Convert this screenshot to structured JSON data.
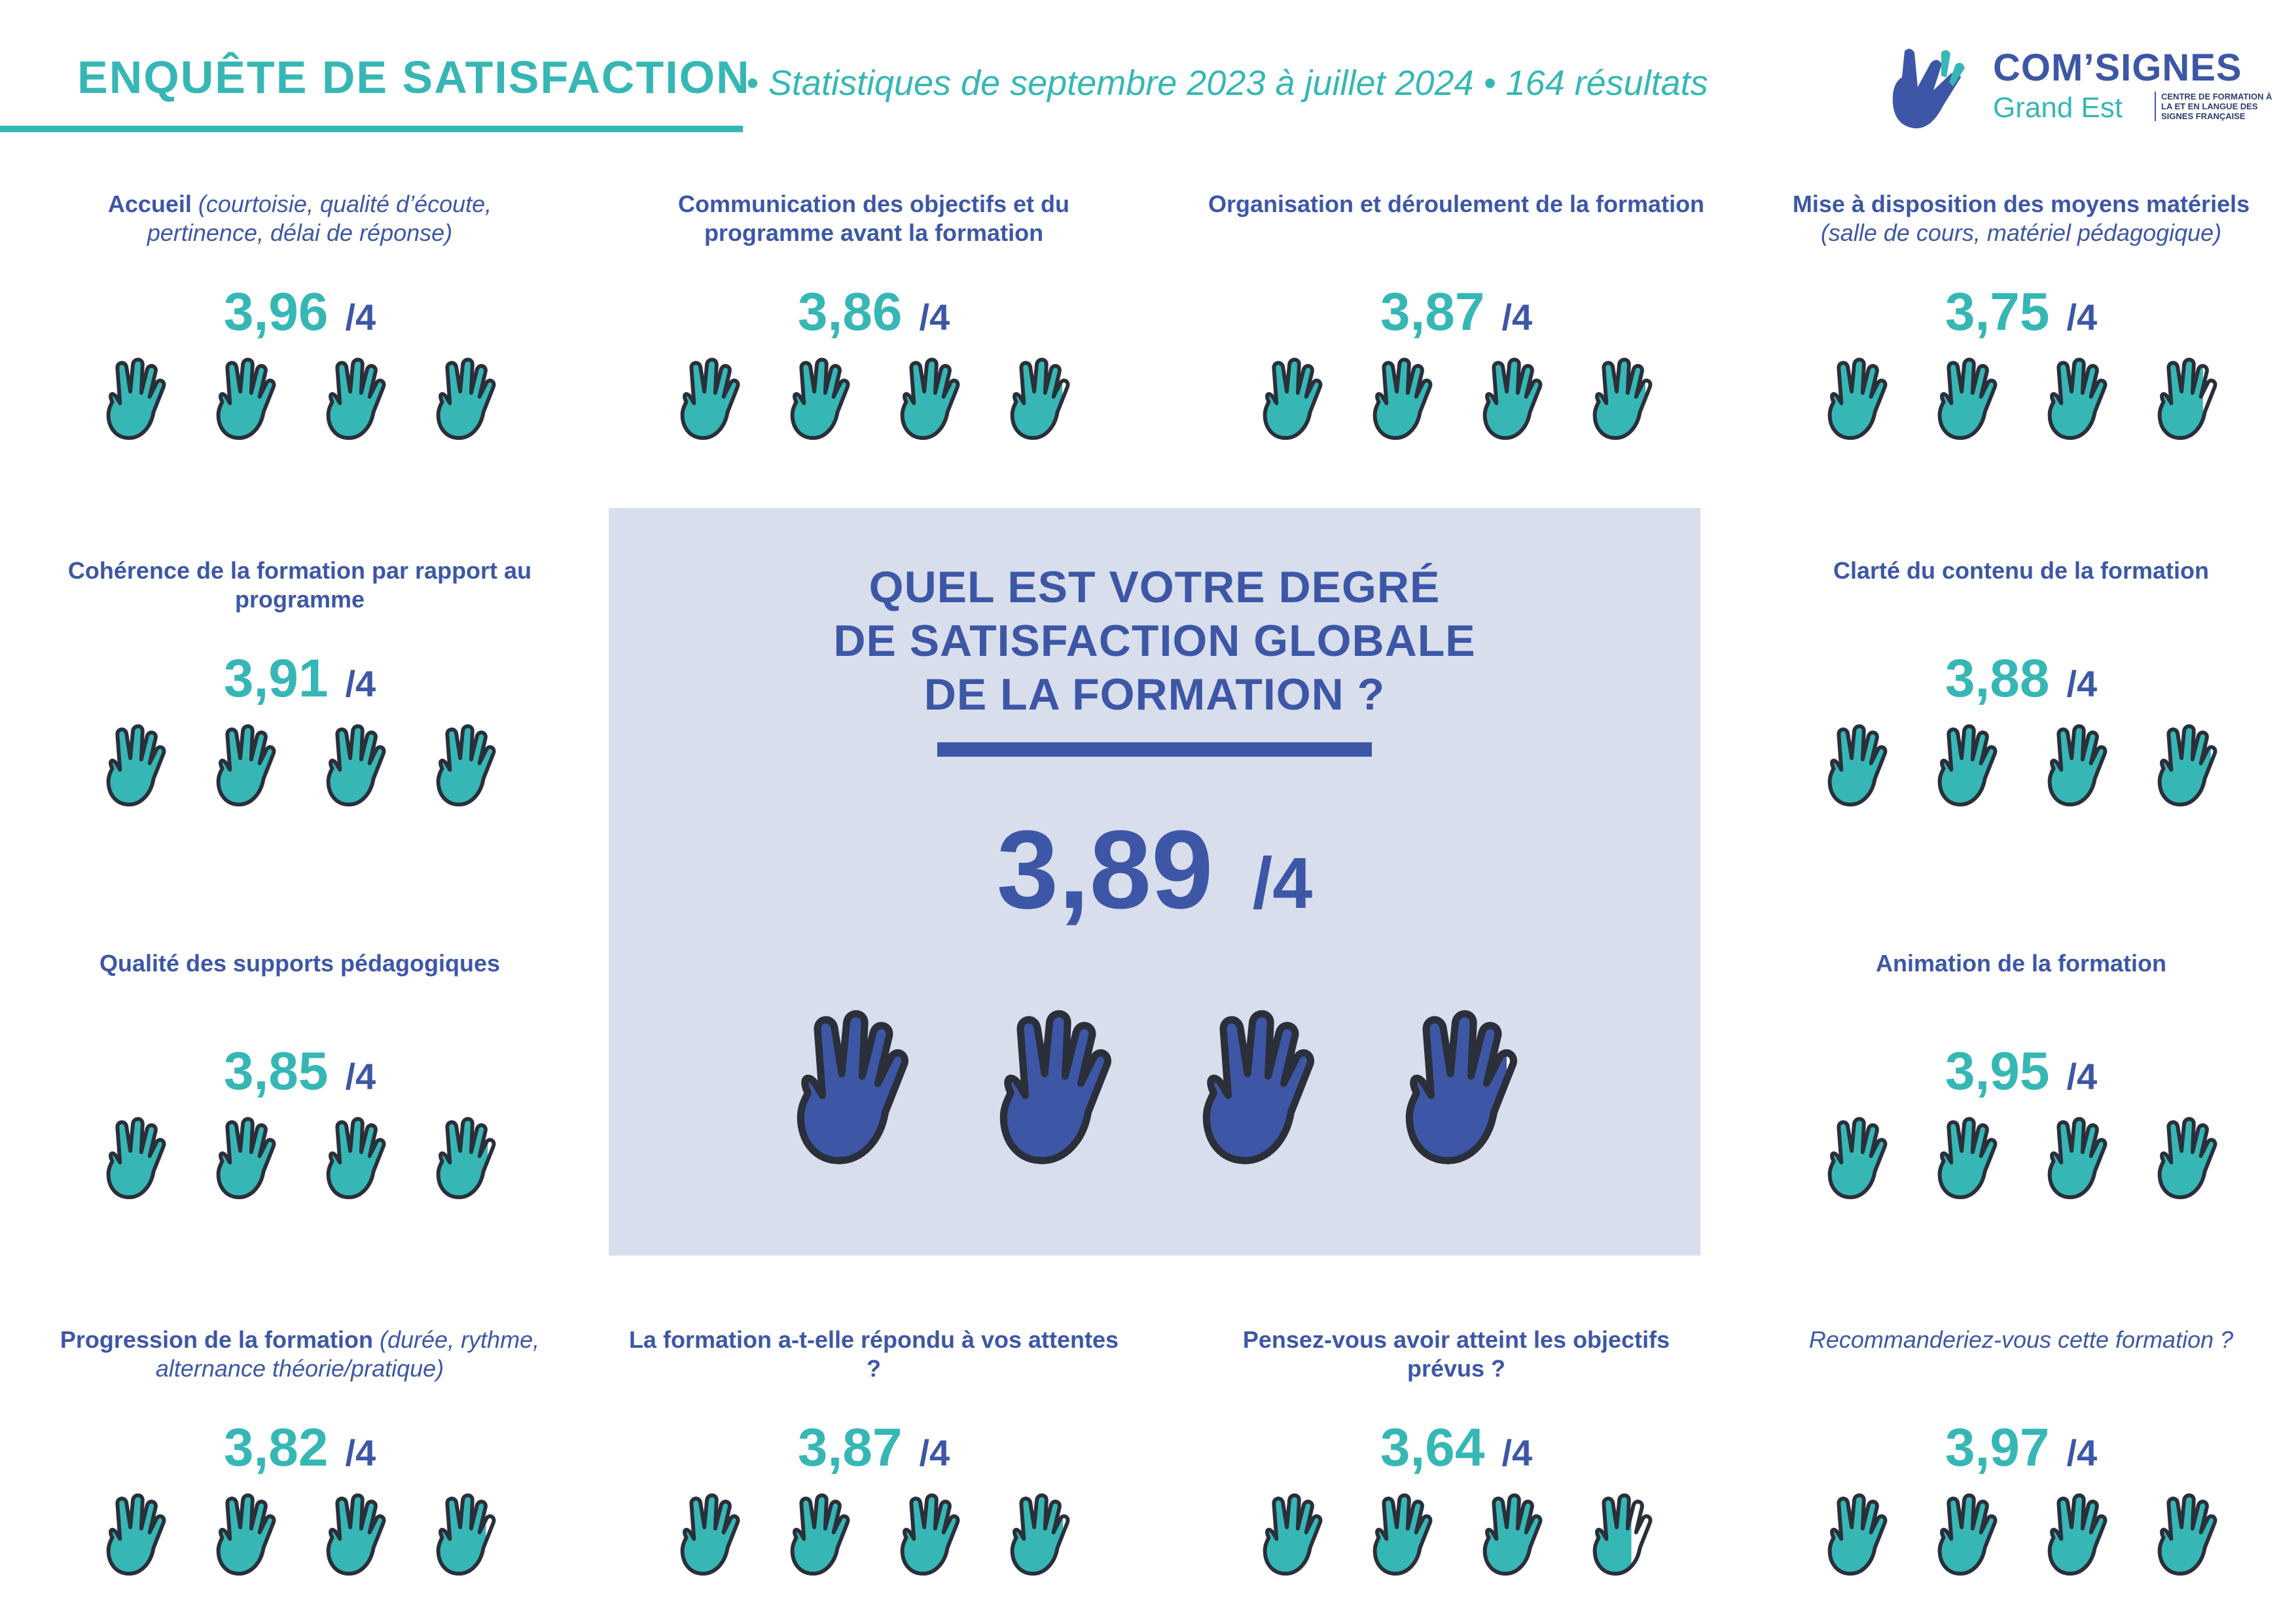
{
  "header": {
    "title": "ENQUÊTE DE SATISFACTION",
    "subtitle": "• Statistiques de septembre 2023 à juillet 2024 • 164 résultats"
  },
  "logo": {
    "name": "COM’SIGNES",
    "region": "Grand Est",
    "tagline": "CENTRE DE FORMATION À LA ET EN LANGUE DES SIGNES FRANÇAISE",
    "icon": "hand-logo-icon"
  },
  "colors": {
    "teal": "#36b7b5",
    "navy": "#3d57a6",
    "panel": "#d9deec",
    "outline": "#2b2f3a"
  },
  "rating_max": 4,
  "denominator": "/4",
  "overall": {
    "question": "QUEL EST VOTRE DEGRÉ DE SATISFACTION GLOBALE DE LA FORMATION ?",
    "question_lines": [
      "QUEL EST VOTRE DEGRÉ",
      "DE SATISFACTION GLOBALE",
      "DE LA FORMATION ?"
    ],
    "score": "3,89",
    "value": 3.89
  },
  "cards": [
    {
      "title": "Accueil",
      "note": " (courtoisie, qualité d’écoute, pertinence, délai de réponse)",
      "score": "3,96",
      "value": 3.96
    },
    {
      "title": "Communication des objectifs et du programme avant la formation",
      "note": "",
      "score": "3,86",
      "value": 3.86
    },
    {
      "title": "Organisation et déroulement de la formation",
      "note": "",
      "score": "3,87",
      "value": 3.87
    },
    {
      "title": "Mise à disposition des moyens matériels",
      "note": " (salle de cours, matériel pédagogique)",
      "score": "3,75",
      "value": 3.75
    },
    {
      "title": "Cohérence de la formation par rapport au programme",
      "note": "",
      "score": "3,91",
      "value": 3.91
    },
    {
      "title": "Clarté du contenu de la formation",
      "note": "",
      "score": "3,88",
      "value": 3.88
    },
    {
      "title": "Qualité des supports pédagogiques",
      "note": "",
      "score": "3,85",
      "value": 3.85
    },
    {
      "title": "Animation de la formation",
      "note": "",
      "score": "3,95",
      "value": 3.95
    },
    {
      "title": "Progression de la formation",
      "note": " (durée, rythme, alternance théorie/pratique)",
      "score": "3,82",
      "value": 3.82
    },
    {
      "title": "La formation a-t-elle répondu à vos attentes ?",
      "note": "",
      "score": "3,87",
      "value": 3.87
    },
    {
      "title": "Pensez-vous avoir atteint les objectifs prévus ?",
      "note": "",
      "score": "3,64",
      "value": 3.64
    },
    {
      "title": "",
      "note": "Recommanderiez-vous cette formation ?",
      "score": "3,97",
      "value": 3.97
    }
  ]
}
